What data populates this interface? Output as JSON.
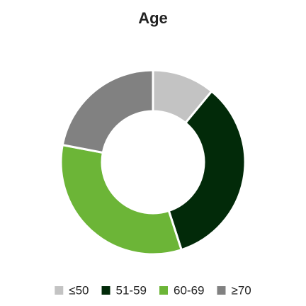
{
  "chart_data": {
    "type": "donut",
    "title": "Age",
    "categories": [
      "≤50",
      "51-59",
      "60-69",
      "≥70"
    ],
    "values": [
      11,
      34,
      33,
      22
    ],
    "colors": [
      "#c3c3c3",
      "#022a09",
      "#6cb537",
      "#818181"
    ],
    "legend": "bottom"
  }
}
